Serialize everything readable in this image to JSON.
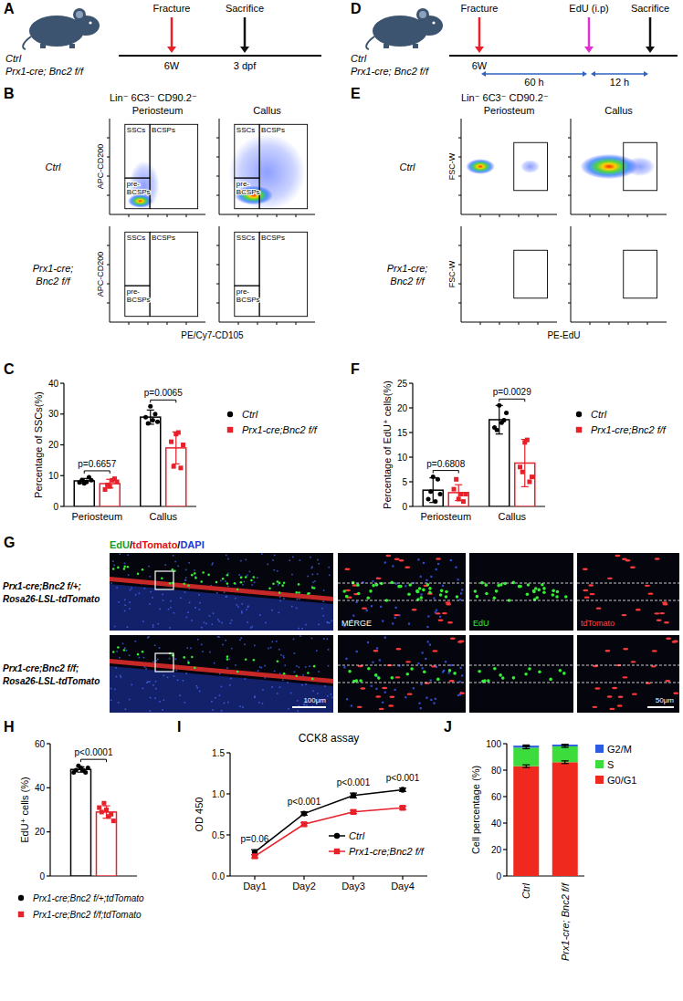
{
  "panel_letters": [
    "A",
    "B",
    "C",
    "D",
    "E",
    "F",
    "G",
    "H",
    "I",
    "J"
  ],
  "schematics": [
    {
      "groups": [
        "Ctrl",
        "Prx1-cre; Bnc2 f/f"
      ],
      "events": [
        {
          "label": "Fracture",
          "time": "6W",
          "color": "#e8202a"
        },
        {
          "label": "Sacrifice",
          "time": "3 dpf",
          "color": "#111111"
        }
      ]
    },
    {
      "groups": [
        "Ctrl",
        "Prx1-cre; Bnc2 f/f"
      ],
      "events": [
        {
          "label": "Fracture",
          "time": "6W",
          "color": "#e8202a"
        },
        {
          "label": "EdU (i.p)",
          "color": "#e030d0"
        },
        {
          "label": "Sacrifice",
          "color": "#111111"
        }
      ],
      "intervals": [
        "60 h",
        "12 h"
      ]
    }
  ],
  "flow": [
    {
      "gate_title": "Lin⁻ 6C3⁻ CD90.2⁻",
      "columns": [
        "Periosteum",
        "Callus"
      ],
      "rows": [
        "Ctrl",
        "Prx1-cre; Bnc2 f/f"
      ],
      "x_label": "PE/Cy7-CD105",
      "y_label": "APC-CD200",
      "gates": [
        "SSCs",
        "BCSPs",
        "pre-BCSPs"
      ]
    },
    {
      "gate_title": "Lin⁻ 6C3⁻ CD90.2⁻",
      "columns": [
        "Periosteum",
        "Callus"
      ],
      "rows": [
        "Ctrl",
        "Prx1-cre; Bnc2 f/f"
      ],
      "x_label": "PE-EdU",
      "y_label": "FSC-W",
      "gates": []
    }
  ],
  "images": {
    "title": "EdU/tdTomato/DAPI",
    "rows": [
      "Prx1-cre;Bnc2 f/+; Rosa26-LSL-tdTomato",
      "Prx1-cre;Bnc2 f/f; Rosa26-LSL-tdTomato"
    ],
    "channels": [
      "MERGE",
      "EdU",
      "tdTomato"
    ],
    "scale_bars": [
      "100μm",
      "50μm"
    ]
  },
  "chart_data": [
    {
      "type": "bar",
      "y_label": "Percentage of SSCs(%)",
      "categories": [
        "Periosteum",
        "Callus"
      ],
      "ylim": [
        0,
        40
      ],
      "yticks": [
        0,
        10,
        20,
        30,
        40
      ],
      "legend": "right",
      "series": [
        {
          "name": "Ctrl",
          "color": "#000000",
          "marker": "circle",
          "values": [
            8.3,
            29
          ],
          "errors": [
            0.8,
            2.3
          ],
          "points": [
            [
              7.5,
              8,
              8.5,
              9.5,
              7.8,
              8.5
            ],
            [
              32.5,
              28,
              27,
              30,
              29,
              27.5
            ]
          ]
        },
        {
          "name": "Prx1-cre;Bnc2 f/f",
          "color": "#e8202a",
          "marker": "square",
          "values": [
            7.4,
            19
          ],
          "errors": [
            1.4,
            5.2
          ],
          "points": [
            [
              6.5,
              8.5,
              7,
              9,
              5.5,
              8
            ],
            [
              23.5,
              24,
              13,
              12.5,
              21,
              20
            ]
          ]
        }
      ],
      "annotations": [
        "p=0.6657",
        "p=0.0065"
      ]
    },
    {
      "type": "bar",
      "y_label": "Percentage of EdU⁺ cells(%)",
      "categories": [
        "Periosteum",
        "Callus"
      ],
      "ylim": [
        0,
        25
      ],
      "yticks": [
        0,
        5,
        10,
        15,
        20,
        25
      ],
      "legend": "right",
      "series": [
        {
          "name": "Ctrl",
          "color": "#000000",
          "marker": "circle",
          "values": [
            3.3,
            17.6
          ],
          "errors": [
            2.5,
            2.9
          ],
          "points": [
            [
              6,
              1,
              3,
              5.5,
              1.5,
              2.5
            ],
            [
              20.5,
              17,
              15.5,
              17.5,
              16,
              19
            ]
          ]
        },
        {
          "name": "Prx1-cre;Bnc2 f/f",
          "color": "#e8202a",
          "marker": "square",
          "values": [
            2.8,
            8.8
          ],
          "errors": [
            1.6,
            4.8
          ],
          "points": [
            [
              1.5,
              2.5,
              5.5,
              1,
              3.5,
              2.5
            ],
            [
              13,
              13.5,
              7,
              5,
              8,
              6
            ]
          ]
        }
      ],
      "annotations": [
        "p=0.6808",
        "p=0.0029"
      ]
    },
    {
      "type": "bar",
      "y_label": "EdU⁺ cells (%)",
      "categories": [
        null
      ],
      "ylim": [
        0,
        60
      ],
      "yticks": [
        0,
        20,
        40,
        60
      ],
      "legend": "bottom",
      "series": [
        {
          "name": "Prx1-cre;Bnc2 f/+;tdTomato",
          "color": "#000000",
          "marker": "circle",
          "values": [
            48.3
          ],
          "errors": [
            1.2
          ],
          "points": [
            [
              49,
              48,
              50,
              47,
              48,
              49,
              47
            ]
          ]
        },
        {
          "name": "Prx1-cre;Bnc2 f/f;tdTomato",
          "color": "#e8202a",
          "marker": "square",
          "values": [
            29
          ],
          "errors": [
            2.8
          ],
          "points": [
            [
              30,
              27,
              33,
              28,
              29,
              25,
              31
            ]
          ]
        }
      ],
      "annotations": [
        "p<0.0001"
      ]
    },
    {
      "type": "line",
      "title": "CCK8 assay",
      "y_label": "OD 450",
      "categories": [
        "Day1",
        "Day2",
        "Day3",
        "Day4"
      ],
      "ylim": [
        0,
        1.5
      ],
      "yticks": [
        {
          "value": 0,
          "label": "0.0"
        },
        {
          "value": 0.5,
          "label": "0.5"
        },
        {
          "value": 1,
          "label": "1.0"
        },
        {
          "value": 1.5,
          "label": "1.5"
        }
      ],
      "legend": "lower right",
      "series": [
        {
          "name": "Ctrl",
          "color": "#000000",
          "marker": "circle",
          "values": [
            0.29,
            0.76,
            0.98,
            1.05
          ],
          "errors": [
            0.03,
            0.02,
            0.03,
            0.02
          ]
        },
        {
          "name": "Prx1-cre;Bnc2 f/f",
          "color": "#e8202a",
          "marker": "square",
          "values": [
            0.24,
            0.63,
            0.78,
            0.83
          ],
          "errors": [
            0.02,
            0.02,
            0.02,
            0.02
          ]
        }
      ],
      "annotations": [
        "p=0.06",
        "p<0.001",
        "p<0.001",
        "p<0.001"
      ]
    },
    {
      "type": "bar",
      "stacked": true,
      "y_label": "Cell percentage (%)",
      "categories": [
        "Ctrl",
        "Prx1-cre; Bnc2 f/f"
      ],
      "ylim": [
        0,
        100
      ],
      "yticks": [
        0,
        20,
        40,
        60,
        80,
        100
      ],
      "legend": "right",
      "series": [
        {
          "name": "G0/G1",
          "color": "#f0291e",
          "values": [
            83,
            86
          ],
          "errors": [
            1,
            1
          ]
        },
        {
          "name": "S",
          "color": "#3ddc3d",
          "values": [
            14,
            12
          ],
          "errors": [
            0.8,
            0.8
          ]
        },
        {
          "name": "G2/M",
          "color": "#2a5be0",
          "values": [
            1.5,
            1.3
          ],
          "errors": [
            0.5,
            0.5
          ]
        }
      ]
    }
  ]
}
